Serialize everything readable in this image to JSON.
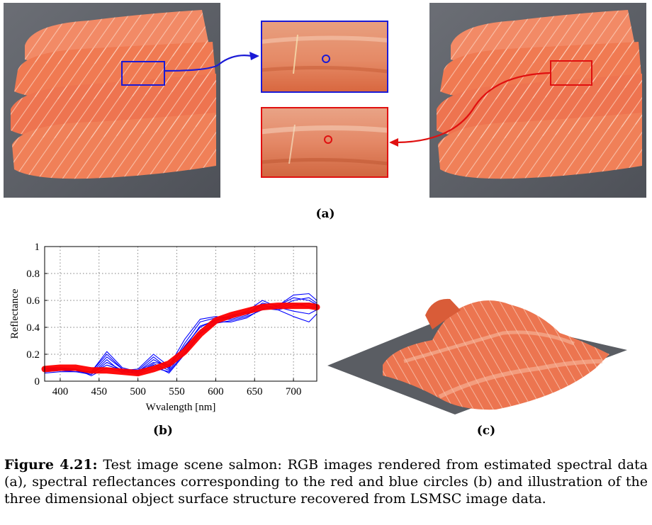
{
  "figure": {
    "label_a": "(a)",
    "label_b": "(b)",
    "label_c": "(c)",
    "caption_label": "Figure 4.21:",
    "caption_text": " Test image scene salmon: RGB images rendered from estimated spectral data (a), spectral reflectances corresponding to the red and blue circles (b) and illustration of the three dimensional object surface structure recovered from LSMSC image data."
  },
  "colors": {
    "blue_marker": "#1a1ad6",
    "red_marker": "#e01010",
    "salmon": "#f07a52",
    "background_gray": "#5d6068"
  },
  "chart_data": {
    "type": "line",
    "xlabel": "Wvalength [nm]",
    "ylabel": "Reflectance",
    "xlim": [
      380,
      730
    ],
    "ylim": [
      0,
      1
    ],
    "x_ticks": [
      400,
      450,
      500,
      550,
      600,
      650,
      700
    ],
    "y_ticks": [
      0,
      0.2,
      0.4,
      0.6,
      0.8,
      1
    ],
    "grid": true,
    "x": [
      380,
      400,
      420,
      440,
      460,
      480,
      500,
      520,
      540,
      560,
      580,
      600,
      620,
      640,
      660,
      680,
      700,
      720,
      730
    ],
    "series": [
      {
        "color": "#0000ff",
        "values": [
          0.09,
          0.09,
          0.08,
          0.07,
          0.22,
          0.1,
          0.07,
          0.16,
          0.1,
          0.26,
          0.4,
          0.46,
          0.47,
          0.5,
          0.58,
          0.56,
          0.64,
          0.65,
          0.6
        ]
      },
      {
        "color": "#0000ff",
        "values": [
          0.08,
          0.08,
          0.08,
          0.06,
          0.18,
          0.09,
          0.06,
          0.13,
          0.08,
          0.23,
          0.38,
          0.45,
          0.46,
          0.49,
          0.56,
          0.55,
          0.6,
          0.62,
          0.58
        ]
      },
      {
        "color": "#0000ff",
        "values": [
          0.07,
          0.08,
          0.07,
          0.05,
          0.14,
          0.08,
          0.05,
          0.1,
          0.07,
          0.21,
          0.36,
          0.44,
          0.44,
          0.47,
          0.54,
          0.53,
          0.56,
          0.58,
          0.56
        ]
      },
      {
        "color": "#0000ff",
        "values": [
          0.08,
          0.09,
          0.09,
          0.04,
          0.1,
          0.07,
          0.08,
          0.18,
          0.09,
          0.28,
          0.44,
          0.47,
          0.48,
          0.52,
          0.6,
          0.55,
          0.52,
          0.5,
          0.53
        ]
      },
      {
        "color": "#0000ff",
        "values": [
          0.1,
          0.1,
          0.09,
          0.06,
          0.12,
          0.08,
          0.09,
          0.2,
          0.11,
          0.31,
          0.46,
          0.48,
          0.47,
          0.5,
          0.57,
          0.53,
          0.48,
          0.44,
          0.5
        ]
      },
      {
        "color": "#0000ff",
        "values": [
          0.09,
          0.1,
          0.08,
          0.05,
          0.16,
          0.06,
          0.07,
          0.14,
          0.12,
          0.25,
          0.41,
          0.45,
          0.49,
          0.51,
          0.55,
          0.54,
          0.58,
          0.55,
          0.55
        ]
      },
      {
        "color": "#0000ff",
        "values": [
          0.06,
          0.07,
          0.07,
          0.07,
          0.2,
          0.09,
          0.06,
          0.12,
          0.06,
          0.2,
          0.35,
          0.43,
          0.45,
          0.48,
          0.53,
          0.56,
          0.62,
          0.6,
          0.57
        ]
      },
      {
        "color": "#ff0000",
        "values": [
          0.09,
          0.1,
          0.1,
          0.08,
          0.08,
          0.07,
          0.06,
          0.09,
          0.13,
          0.22,
          0.35,
          0.45,
          0.49,
          0.52,
          0.55,
          0.56,
          0.56,
          0.56,
          0.55
        ]
      }
    ]
  }
}
